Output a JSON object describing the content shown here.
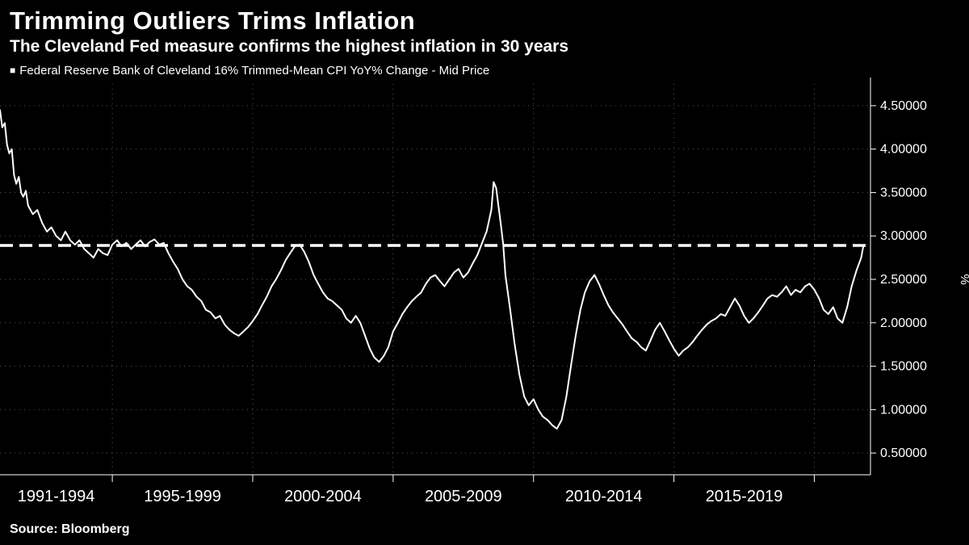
{
  "header": {
    "title": "Trimming Outliers Trims Inflation",
    "subtitle": "The Cleveland Fed measure confirms the highest inflation in 30 years",
    "legend_swatch": "■",
    "legend": "Federal Reserve Bank of Cleveland 16% Trimmed-Mean CPI YoY% Change - Mid Price"
  },
  "footer": {
    "source": "Source: Bloomberg"
  },
  "colors": {
    "background": "#000000",
    "line": "#ffffff",
    "grid": "#565656",
    "text": "#ffffff"
  },
  "chart_data": {
    "type": "line",
    "title": "Trimming Outliers Trims Inflation",
    "subtitle": "The Cleveland Fed measure confirms the highest inflation in 30 years",
    "legend": [
      "Federal Reserve Bank of Cleveland 16% Trimmed-Mean CPI YoY% Change - Mid Price"
    ],
    "grid": true,
    "legend_position": "top-left",
    "reference_line": {
      "value": 2.89,
      "style": "dashed",
      "color": "#ffffff"
    },
    "x_axis": {
      "range": [
        1991,
        2022
      ],
      "gridline_years": [
        1995,
        2000,
        2005,
        2010,
        2015,
        2020
      ],
      "labels": [
        {
          "text": "1991-1994",
          "center": 1993.0
        },
        {
          "text": "1995-1999",
          "center": 1997.5
        },
        {
          "text": "2000-2004",
          "center": 2002.5
        },
        {
          "text": "2005-2009",
          "center": 2007.5
        },
        {
          "text": "2010-2014",
          "center": 2012.5
        },
        {
          "text": "2015-2019",
          "center": 2017.5
        }
      ]
    },
    "y_axis": {
      "range": [
        0.25,
        4.75
      ],
      "ticks": [
        0.5,
        1.0,
        1.5,
        2.0,
        2.5,
        3.0,
        3.5,
        4.0,
        4.5
      ],
      "tick_labels": [
        "0.50000",
        "1.00000",
        "1.50000",
        "2.00000",
        "2.50000",
        "3.00000",
        "3.50000",
        "4.00000",
        "4.50000"
      ],
      "unit": "%"
    },
    "series": [
      {
        "name": "Federal Reserve Bank of Cleveland 16% Trimmed-Mean CPI YoY% Change - Mid Price",
        "points": [
          [
            1991.0,
            4.45
          ],
          [
            1991.08,
            4.25
          ],
          [
            1991.17,
            4.3
          ],
          [
            1991.25,
            4.05
          ],
          [
            1991.33,
            3.95
          ],
          [
            1991.42,
            4.0
          ],
          [
            1991.5,
            3.7
          ],
          [
            1991.58,
            3.6
          ],
          [
            1991.67,
            3.68
          ],
          [
            1991.75,
            3.5
          ],
          [
            1991.83,
            3.45
          ],
          [
            1991.92,
            3.52
          ],
          [
            1992.0,
            3.35
          ],
          [
            1992.17,
            3.25
          ],
          [
            1992.33,
            3.3
          ],
          [
            1992.5,
            3.15
          ],
          [
            1992.67,
            3.05
          ],
          [
            1992.83,
            3.1
          ],
          [
            1993.0,
            3.0
          ],
          [
            1993.17,
            2.95
          ],
          [
            1993.33,
            3.05
          ],
          [
            1993.5,
            2.95
          ],
          [
            1993.67,
            2.9
          ],
          [
            1993.83,
            2.95
          ],
          [
            1994.0,
            2.85
          ],
          [
            1994.17,
            2.8
          ],
          [
            1994.33,
            2.75
          ],
          [
            1994.5,
            2.85
          ],
          [
            1994.67,
            2.8
          ],
          [
            1994.83,
            2.78
          ],
          [
            1995.0,
            2.9
          ],
          [
            1995.17,
            2.95
          ],
          [
            1995.33,
            2.88
          ],
          [
            1995.5,
            2.92
          ],
          [
            1995.67,
            2.85
          ],
          [
            1995.83,
            2.9
          ],
          [
            1996.0,
            2.95
          ],
          [
            1996.17,
            2.88
          ],
          [
            1996.33,
            2.93
          ],
          [
            1996.5,
            2.96
          ],
          [
            1996.67,
            2.9
          ],
          [
            1996.83,
            2.92
          ],
          [
            1997.0,
            2.8
          ],
          [
            1997.17,
            2.7
          ],
          [
            1997.33,
            2.62
          ],
          [
            1997.5,
            2.5
          ],
          [
            1997.67,
            2.42
          ],
          [
            1997.83,
            2.38
          ],
          [
            1998.0,
            2.3
          ],
          [
            1998.17,
            2.25
          ],
          [
            1998.33,
            2.15
          ],
          [
            1998.5,
            2.12
          ],
          [
            1998.67,
            2.05
          ],
          [
            1998.83,
            2.08
          ],
          [
            1999.0,
            1.98
          ],
          [
            1999.17,
            1.92
          ],
          [
            1999.33,
            1.88
          ],
          [
            1999.5,
            1.85
          ],
          [
            1999.67,
            1.9
          ],
          [
            1999.83,
            1.95
          ],
          [
            2000.0,
            2.02
          ],
          [
            2000.17,
            2.1
          ],
          [
            2000.33,
            2.2
          ],
          [
            2000.5,
            2.3
          ],
          [
            2000.67,
            2.42
          ],
          [
            2000.83,
            2.5
          ],
          [
            2001.0,
            2.6
          ],
          [
            2001.17,
            2.72
          ],
          [
            2001.33,
            2.8
          ],
          [
            2001.5,
            2.88
          ],
          [
            2001.67,
            2.9
          ],
          [
            2001.83,
            2.82
          ],
          [
            2002.0,
            2.7
          ],
          [
            2002.17,
            2.55
          ],
          [
            2002.33,
            2.45
          ],
          [
            2002.5,
            2.35
          ],
          [
            2002.67,
            2.28
          ],
          [
            2002.83,
            2.25
          ],
          [
            2003.0,
            2.2
          ],
          [
            2003.17,
            2.15
          ],
          [
            2003.33,
            2.05
          ],
          [
            2003.5,
            2.0
          ],
          [
            2003.67,
            2.08
          ],
          [
            2003.83,
            2.0
          ],
          [
            2004.0,
            1.85
          ],
          [
            2004.17,
            1.7
          ],
          [
            2004.33,
            1.6
          ],
          [
            2004.5,
            1.55
          ],
          [
            2004.67,
            1.62
          ],
          [
            2004.83,
            1.72
          ],
          [
            2005.0,
            1.9
          ],
          [
            2005.17,
            2.0
          ],
          [
            2005.33,
            2.1
          ],
          [
            2005.5,
            2.18
          ],
          [
            2005.67,
            2.25
          ],
          [
            2005.83,
            2.3
          ],
          [
            2006.0,
            2.35
          ],
          [
            2006.17,
            2.45
          ],
          [
            2006.33,
            2.52
          ],
          [
            2006.5,
            2.55
          ],
          [
            2006.67,
            2.48
          ],
          [
            2006.83,
            2.42
          ],
          [
            2007.0,
            2.5
          ],
          [
            2007.17,
            2.58
          ],
          [
            2007.33,
            2.62
          ],
          [
            2007.5,
            2.52
          ],
          [
            2007.67,
            2.58
          ],
          [
            2007.83,
            2.68
          ],
          [
            2008.0,
            2.78
          ],
          [
            2008.17,
            2.92
          ],
          [
            2008.33,
            3.05
          ],
          [
            2008.5,
            3.3
          ],
          [
            2008.58,
            3.62
          ],
          [
            2008.67,
            3.55
          ],
          [
            2008.75,
            3.35
          ],
          [
            2008.83,
            3.15
          ],
          [
            2008.92,
            2.9
          ],
          [
            2009.0,
            2.55
          ],
          [
            2009.17,
            2.15
          ],
          [
            2009.33,
            1.75
          ],
          [
            2009.5,
            1.4
          ],
          [
            2009.67,
            1.15
          ],
          [
            2009.83,
            1.05
          ],
          [
            2010.0,
            1.12
          ],
          [
            2010.17,
            1.0
          ],
          [
            2010.33,
            0.92
          ],
          [
            2010.5,
            0.88
          ],
          [
            2010.67,
            0.82
          ],
          [
            2010.83,
            0.78
          ],
          [
            2011.0,
            0.88
          ],
          [
            2011.17,
            1.15
          ],
          [
            2011.33,
            1.5
          ],
          [
            2011.5,
            1.85
          ],
          [
            2011.67,
            2.15
          ],
          [
            2011.83,
            2.35
          ],
          [
            2012.0,
            2.48
          ],
          [
            2012.17,
            2.55
          ],
          [
            2012.33,
            2.45
          ],
          [
            2012.5,
            2.32
          ],
          [
            2012.67,
            2.2
          ],
          [
            2012.83,
            2.12
          ],
          [
            2013.0,
            2.05
          ],
          [
            2013.17,
            1.98
          ],
          [
            2013.33,
            1.9
          ],
          [
            2013.5,
            1.82
          ],
          [
            2013.67,
            1.78
          ],
          [
            2013.83,
            1.72
          ],
          [
            2014.0,
            1.68
          ],
          [
            2014.17,
            1.8
          ],
          [
            2014.33,
            1.92
          ],
          [
            2014.5,
            2.0
          ],
          [
            2014.67,
            1.9
          ],
          [
            2014.83,
            1.8
          ],
          [
            2015.0,
            1.7
          ],
          [
            2015.17,
            1.62
          ],
          [
            2015.33,
            1.68
          ],
          [
            2015.5,
            1.72
          ],
          [
            2015.67,
            1.78
          ],
          [
            2015.83,
            1.85
          ],
          [
            2016.0,
            1.92
          ],
          [
            2016.17,
            1.98
          ],
          [
            2016.33,
            2.02
          ],
          [
            2016.5,
            2.05
          ],
          [
            2016.67,
            2.1
          ],
          [
            2016.83,
            2.08
          ],
          [
            2017.0,
            2.18
          ],
          [
            2017.17,
            2.28
          ],
          [
            2017.33,
            2.2
          ],
          [
            2017.5,
            2.08
          ],
          [
            2017.67,
            2.0
          ],
          [
            2017.83,
            2.05
          ],
          [
            2018.0,
            2.12
          ],
          [
            2018.17,
            2.2
          ],
          [
            2018.33,
            2.28
          ],
          [
            2018.5,
            2.32
          ],
          [
            2018.67,
            2.3
          ],
          [
            2018.83,
            2.35
          ],
          [
            2019.0,
            2.42
          ],
          [
            2019.17,
            2.32
          ],
          [
            2019.33,
            2.38
          ],
          [
            2019.5,
            2.35
          ],
          [
            2019.67,
            2.42
          ],
          [
            2019.83,
            2.45
          ],
          [
            2020.0,
            2.38
          ],
          [
            2020.17,
            2.28
          ],
          [
            2020.33,
            2.15
          ],
          [
            2020.5,
            2.1
          ],
          [
            2020.67,
            2.18
          ],
          [
            2020.83,
            2.05
          ],
          [
            2021.0,
            2.0
          ],
          [
            2021.17,
            2.18
          ],
          [
            2021.33,
            2.42
          ],
          [
            2021.5,
            2.6
          ],
          [
            2021.67,
            2.75
          ],
          [
            2021.75,
            2.89
          ]
        ]
      }
    ]
  }
}
